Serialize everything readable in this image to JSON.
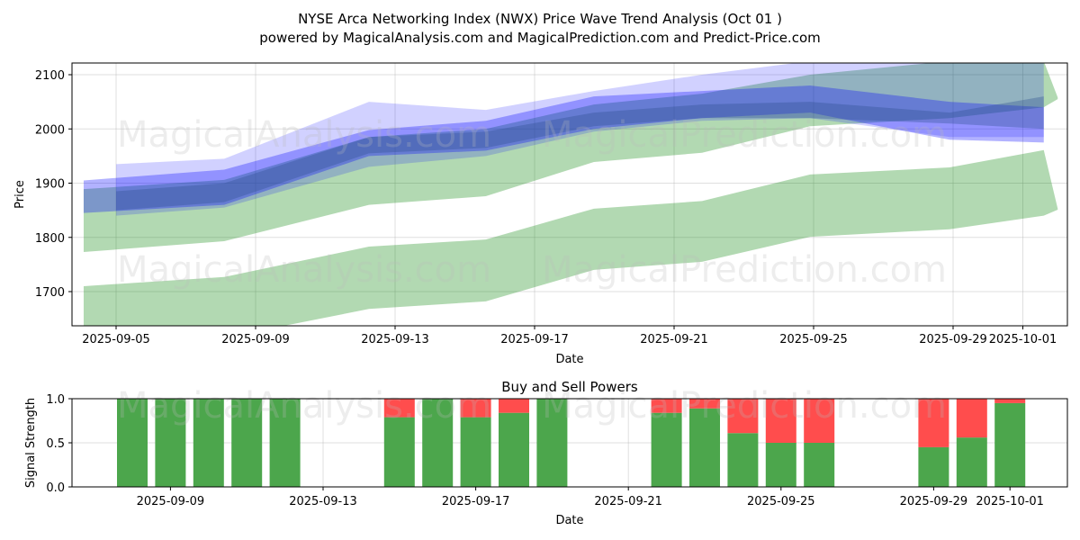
{
  "chart_data": [
    {
      "type": "area",
      "title": "NYSE Arca Networking Index (NWX) Price Wave Trend Analysis (Oct 01 )",
      "subtitle": "powered by MagicalAnalysis.com and MagicalPrediction.com and Predict-Price.com",
      "xlabel": "Date",
      "ylabel": "Price",
      "x_origin": "2025-09-04",
      "xlim_days": [
        -0.3,
        28.3
      ],
      "ylim": [
        1637,
        2121
      ],
      "grid": true,
      "x_ticks": [
        {
          "label": "2025-09-05",
          "day": 1
        },
        {
          "label": "2025-09-09",
          "day": 5
        },
        {
          "label": "2025-09-13",
          "day": 9
        },
        {
          "label": "2025-09-17",
          "day": 13
        },
        {
          "label": "2025-09-21",
          "day": 17
        },
        {
          "label": "2025-09-25",
          "day": 21
        },
        {
          "label": "2025-09-29",
          "day": 25
        },
        {
          "label": "2025-10-01",
          "day": 27
        }
      ],
      "y_ticks": [
        1700,
        1800,
        1900,
        2000,
        2100
      ],
      "bands": [
        {
          "name": "green-lower",
          "color": "#008000",
          "opacity": 0.3,
          "x": [
            0.07,
            4.1,
            8.25,
            11.6,
            14.7,
            17.8,
            20.9,
            24.9,
            27.6,
            28.0
          ],
          "upper": [
            1710,
            1727,
            1783,
            1796,
            1853,
            1867,
            1916,
            1929,
            1961,
            1853
          ],
          "lower": [
            1637,
            1615,
            1668,
            1682,
            1740,
            1755,
            1801,
            1815,
            1840,
            1851
          ]
        },
        {
          "name": "green-upper",
          "color": "#008000",
          "opacity": 0.3,
          "x": [
            0.07,
            4.1,
            8.25,
            11.6,
            14.7,
            17.8,
            20.9,
            24.9,
            27.6,
            28.0
          ],
          "upper": [
            1889,
            1906,
            1985,
            2000,
            2045,
            2065,
            2100,
            2125,
            2125,
            2058
          ],
          "lower": [
            1773,
            1793,
            1860,
            1876,
            1939,
            1956,
            2005,
            2020,
            2040,
            2055
          ]
        },
        {
          "name": "blue-wide",
          "color": "#0000ff",
          "opacity": 0.18,
          "x": [
            1.0,
            4.1,
            8.25,
            11.6,
            14.7,
            17.8,
            20.9,
            24.9,
            27.6
          ],
          "upper": [
            1935,
            1945,
            2050,
            2035,
            2070,
            2100,
            2125,
            2125,
            2125
          ],
          "lower": [
            1840,
            1855,
            1930,
            1950,
            1995,
            2015,
            2020,
            1985,
            1985
          ]
        },
        {
          "name": "blue-main",
          "color": "#0000ff",
          "opacity": 0.3,
          "x": [
            0.07,
            4.1,
            8.25,
            11.6,
            14.7,
            17.8,
            20.9,
            24.9,
            27.6
          ],
          "upper": [
            1905,
            1925,
            1998,
            2015,
            2060,
            2070,
            2080,
            2050,
            2040
          ],
          "lower": [
            1845,
            1860,
            1950,
            1960,
            2000,
            2020,
            2030,
            1980,
            1975
          ]
        },
        {
          "name": "slate-core",
          "color": "#2f4f8f",
          "opacity": 0.35,
          "x": [
            1.0,
            4.1,
            8.25,
            11.6,
            14.7,
            17.8,
            20.9,
            24.9,
            27.6
          ],
          "upper": [
            1885,
            1900,
            1985,
            1995,
            2030,
            2045,
            2050,
            2030,
            2060
          ],
          "lower": [
            1850,
            1865,
            1955,
            1965,
            2005,
            2020,
            2020,
            2010,
            2000
          ]
        }
      ]
    },
    {
      "type": "bar",
      "title": "Buy and Sell Powers",
      "xlabel": "Date",
      "ylabel": "Signal Strength",
      "x_origin": "2025-09-08",
      "ylim": [
        0,
        1.0
      ],
      "y_ticks": [
        "0.0",
        "0.5",
        "1.0"
      ],
      "x_ticks": [
        {
          "label": "2025-09-09",
          "day": 1
        },
        {
          "label": "2025-09-13",
          "day": 5
        },
        {
          "label": "2025-09-17",
          "day": 9
        },
        {
          "label": "2025-09-21",
          "day": 13
        },
        {
          "label": "2025-09-25",
          "day": 17
        },
        {
          "label": "2025-09-29",
          "day": 21
        },
        {
          "label": "2025-10-01",
          "day": 23
        }
      ],
      "buy_color": "#4ca64c",
      "sell_color": "#ff4d4d",
      "bars": [
        {
          "day": 0,
          "buy": 1.0
        },
        {
          "day": 1,
          "buy": 1.0
        },
        {
          "day": 2,
          "buy": 1.0
        },
        {
          "day": 3,
          "buy": 1.0
        },
        {
          "day": 4,
          "buy": 1.0
        },
        {
          "day": 7,
          "buy": 0.79
        },
        {
          "day": 8,
          "buy": 1.0
        },
        {
          "day": 9,
          "buy": 0.79
        },
        {
          "day": 10,
          "buy": 0.84
        },
        {
          "day": 11,
          "buy": 1.0
        },
        {
          "day": 14,
          "buy": 0.84
        },
        {
          "day": 15,
          "buy": 0.89
        },
        {
          "day": 16,
          "buy": 0.61
        },
        {
          "day": 17,
          "buy": 0.5
        },
        {
          "day": 18,
          "buy": 0.5
        },
        {
          "day": 21,
          "buy": 0.45
        },
        {
          "day": 22,
          "buy": 0.56
        },
        {
          "day": 23,
          "buy": 0.95
        }
      ]
    }
  ],
  "watermarks": [
    "MagicalAnalysis.com",
    "MagicalPrediction.com"
  ]
}
